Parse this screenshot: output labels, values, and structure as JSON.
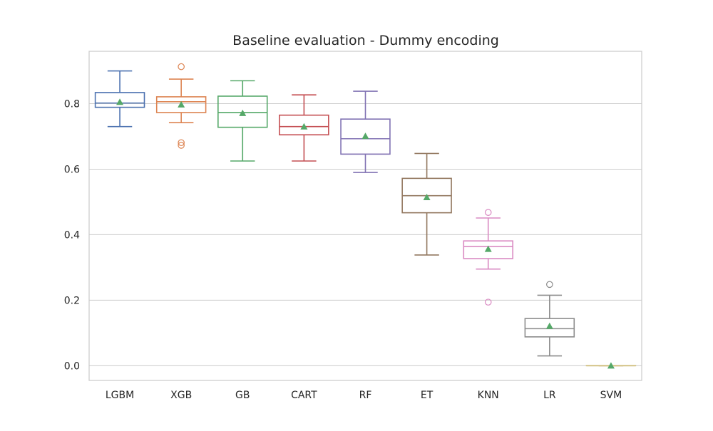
{
  "chart_data": {
    "type": "box",
    "title": "Baseline evaluation - Dummy encoding",
    "xlabel": "",
    "ylabel": "",
    "ylim": [
      -0.045,
      0.96
    ],
    "yticks": [
      0.0,
      0.2,
      0.4,
      0.6,
      0.8
    ],
    "ytick_labels": [
      "0.0",
      "0.2",
      "0.4",
      "0.6",
      "0.8"
    ],
    "grid": "horizontal",
    "categories": [
      "LGBM",
      "XGB",
      "GB",
      "CART",
      "RF",
      "ET",
      "KNN",
      "LR",
      "SVM"
    ],
    "series": [
      {
        "category": "LGBM",
        "color": "#4c72b0",
        "whisker_low": 0.73,
        "q1": 0.789,
        "median": 0.802,
        "q3": 0.834,
        "whisker_high": 0.9,
        "mean": 0.805,
        "outliers": []
      },
      {
        "category": "XGB",
        "color": "#dd8452",
        "whisker_low": 0.742,
        "q1": 0.773,
        "median": 0.806,
        "q3": 0.821,
        "whisker_high": 0.875,
        "mean": 0.797,
        "outliers": [
          0.913,
          0.681,
          0.673
        ]
      },
      {
        "category": "GB",
        "color": "#55a868",
        "whisker_low": 0.625,
        "q1": 0.728,
        "median": 0.773,
        "q3": 0.823,
        "whisker_high": 0.87,
        "mean": 0.771,
        "outliers": []
      },
      {
        "category": "CART",
        "color": "#c44e52",
        "whisker_low": 0.625,
        "q1": 0.705,
        "median": 0.73,
        "q3": 0.765,
        "whisker_high": 0.827,
        "mean": 0.73,
        "outliers": []
      },
      {
        "category": "RF",
        "color": "#8172b3",
        "whisker_low": 0.59,
        "q1": 0.646,
        "median": 0.693,
        "q3": 0.753,
        "whisker_high": 0.838,
        "mean": 0.701,
        "outliers": []
      },
      {
        "category": "ET",
        "color": "#937860",
        "whisker_low": 0.338,
        "q1": 0.467,
        "median": 0.519,
        "q3": 0.572,
        "whisker_high": 0.648,
        "mean": 0.514,
        "outliers": []
      },
      {
        "category": "KNN",
        "color": "#da8bc3",
        "whisker_low": 0.295,
        "q1": 0.327,
        "median": 0.364,
        "q3": 0.381,
        "whisker_high": 0.451,
        "mean": 0.356,
        "outliers": [
          0.468,
          0.194
        ]
      },
      {
        "category": "LR",
        "color": "#8c8c8c",
        "whisker_low": 0.03,
        "q1": 0.088,
        "median": 0.113,
        "q3": 0.144,
        "whisker_high": 0.215,
        "mean": 0.121,
        "outliers": [
          0.248
        ]
      },
      {
        "category": "SVM",
        "color": "#ccb974",
        "whisker_low": 0.0,
        "q1": 0.0,
        "median": 0.0,
        "q3": 0.0,
        "whisker_high": 0.0,
        "mean": 0.0,
        "outliers": []
      }
    ],
    "mean_marker_color": "#55a868",
    "grid_color": "#cccccc",
    "spine_color": "#cccccc"
  }
}
